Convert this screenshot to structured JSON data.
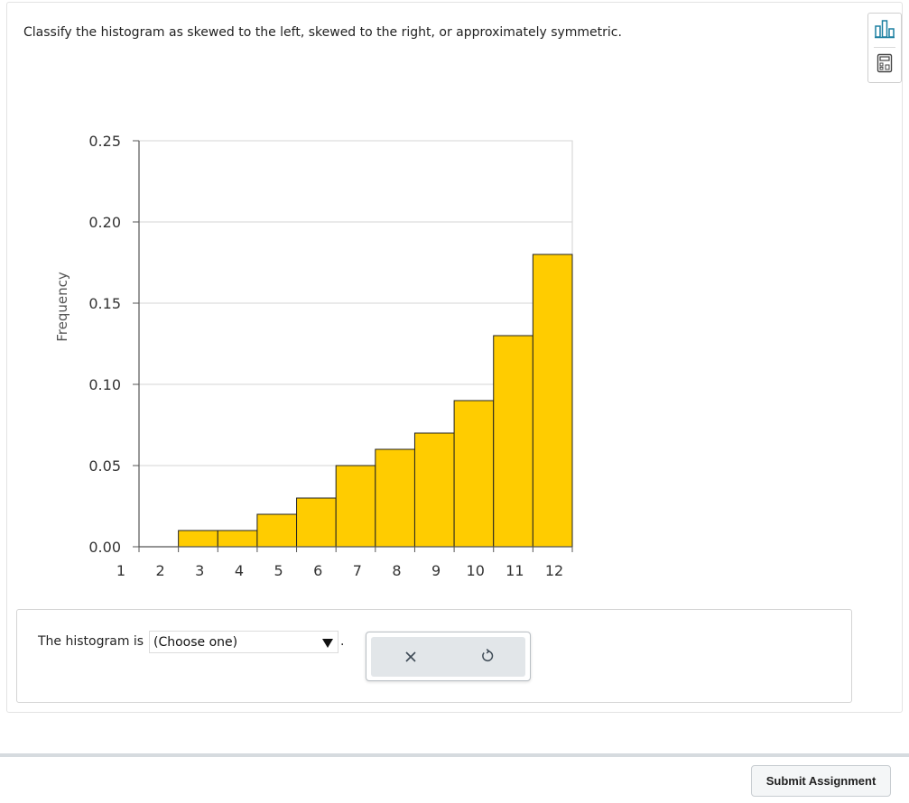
{
  "question": {
    "prompt": "Classify the histogram as skewed to the left, skewed to the right, or approximately symmetric."
  },
  "tools": [
    {
      "name": "statistics-icon"
    },
    {
      "name": "calculator-icon"
    }
  ],
  "chart_data": {
    "type": "bar",
    "title": "",
    "xlabel": "",
    "ylabel": "Frequency",
    "bin_edges": [
      1,
      2,
      3,
      4,
      5,
      6,
      7,
      8,
      9,
      10,
      11,
      12
    ],
    "values": [
      0,
      0.01,
      0.01,
      0.02,
      0.03,
      0.05,
      0.06,
      0.07,
      0.09,
      0.13,
      0.18
    ],
    "x_ticks": [
      1,
      2,
      3,
      4,
      5,
      6,
      7,
      8,
      9,
      10,
      11,
      12
    ],
    "y_ticks": [
      "0.00",
      "0.05",
      "0.10",
      "0.15",
      "0.20",
      "0.25"
    ],
    "xlim": [
      1,
      12
    ],
    "ylim": [
      0,
      0.25
    ],
    "grid": true,
    "bar_color": "#ffcc00",
    "bar_edge_color": "#222222",
    "axis_color": "#555555"
  },
  "answer": {
    "label": "The histogram is",
    "select_value": "(Choose one)",
    "period": "."
  },
  "actions": {
    "clear_icon": "close-icon",
    "reset_icon": "undo-icon"
  },
  "footer": {
    "submit_label": "Submit Assignment"
  }
}
